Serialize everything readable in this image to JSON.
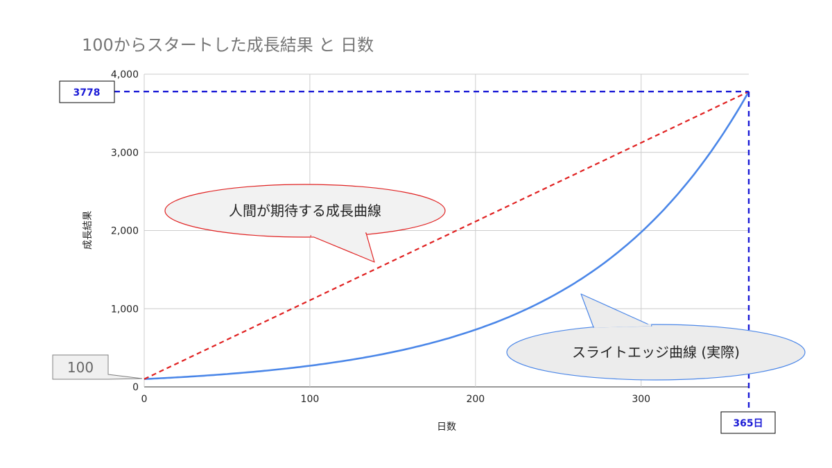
{
  "chart_data": {
    "type": "line",
    "title": "100からスタートした成長結果 と 日数",
    "xlabel": "日数",
    "ylabel": "成長結果",
    "xlim": [
      0,
      365
    ],
    "ylim": [
      0,
      4000
    ],
    "x_ticks": [
      0,
      100,
      200,
      300
    ],
    "y_ticks": [
      0,
      1000,
      2000,
      3000,
      4000
    ],
    "x_tick_labels": [
      "0",
      "100",
      "200",
      "300"
    ],
    "y_tick_labels": [
      "0",
      "1,000",
      "2,000",
      "3,000",
      "4,000"
    ],
    "grid": true,
    "series": [
      {
        "name": "スライトエッジ曲線 (実際)",
        "color": "#4a86e8",
        "style": "solid",
        "x": [
          0,
          50,
          100,
          150,
          200,
          250,
          300,
          365
        ],
        "y": [
          100,
          165,
          270,
          440,
          730,
          1200,
          1980,
          3778
        ]
      },
      {
        "name": "人間が期待する成長曲線",
        "color": "#e02020",
        "style": "dashed",
        "x": [
          0,
          365
        ],
        "y": [
          100,
          3778
        ]
      }
    ],
    "annotations": {
      "start_value": "100",
      "end_value": "3778",
      "end_day": "365日",
      "expected_label": "人間が期待する成長曲線",
      "actual_label": "スライトエッジ曲線 (実際)"
    }
  }
}
